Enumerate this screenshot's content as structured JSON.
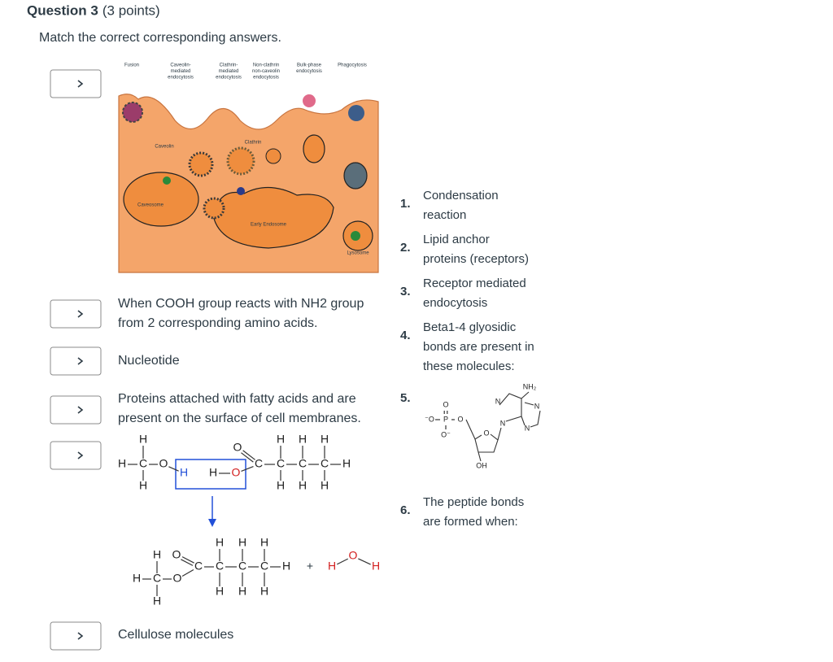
{
  "header": {
    "title": "Question 3",
    "points": "(3 points)",
    "instruction": "Match the correct corresponding answers."
  },
  "prompts": [
    {
      "figure": {
        "headings": [
          [
            "Fusion"
          ],
          [
            "Caveolin-",
            "mediated",
            "endocytosis"
          ],
          [
            "Clathrin-",
            "mediated",
            "endocytosis"
          ],
          [
            "Non-clathrin",
            "non-caveolin",
            "endocytosis"
          ],
          [
            "Bulk-phase",
            "endocytosis"
          ],
          [
            "Phagocytosis"
          ]
        ],
        "labels": [
          "Caveolin",
          "Clathrin",
          "Caveosome",
          "Early Endosome",
          "Lysosome"
        ]
      }
    },
    {
      "lines": [
        "When COOH group reacts with NH2 group",
        "from 2 corresponding amino acids."
      ]
    },
    {
      "lines": [
        "Nucleotide"
      ]
    },
    {
      "lines": [
        "Proteins attached with fatty acids and are",
        "present on the surface of cell membranes."
      ]
    },
    {
      "reaction": {
        "reactant_atoms": [
          "H",
          "H",
          "C",
          "O",
          "H",
          "H",
          "H",
          "O",
          "O",
          "C",
          "C",
          "C",
          "C",
          "H",
          "H",
          "H",
          "H",
          "H",
          "H",
          "H"
        ],
        "product_atoms": [
          "H",
          "O",
          "H",
          "C",
          "O",
          "H",
          "C",
          "C",
          "C",
          "C",
          "H",
          "H",
          "H",
          "H",
          "H",
          "H",
          "H",
          "H",
          "O",
          "H"
        ],
        "plus": "+"
      }
    },
    {
      "lines": [
        "Cellulose molecules"
      ]
    }
  ],
  "options": [
    {
      "number": "1.",
      "lines": [
        "Condensation",
        "reaction"
      ]
    },
    {
      "number": "2.",
      "lines": [
        "Lipid anchor",
        "proteins (receptors)"
      ]
    },
    {
      "number": "3.",
      "lines": [
        "Receptor mediated",
        "endocytosis"
      ]
    },
    {
      "number": "4.",
      "lines": [
        "Beta1-4 glyosidic",
        "bonds are present in",
        "these molecules:"
      ]
    },
    {
      "number": "5.",
      "structure_atoms": [
        "NH₂",
        "N",
        "N",
        "N",
        "N",
        "O",
        "⁻O",
        "P",
        "O",
        "O⁻",
        "O",
        "OH"
      ]
    },
    {
      "number": "6.",
      "lines": [
        "The peptide bonds",
        "are formed when:"
      ]
    }
  ]
}
